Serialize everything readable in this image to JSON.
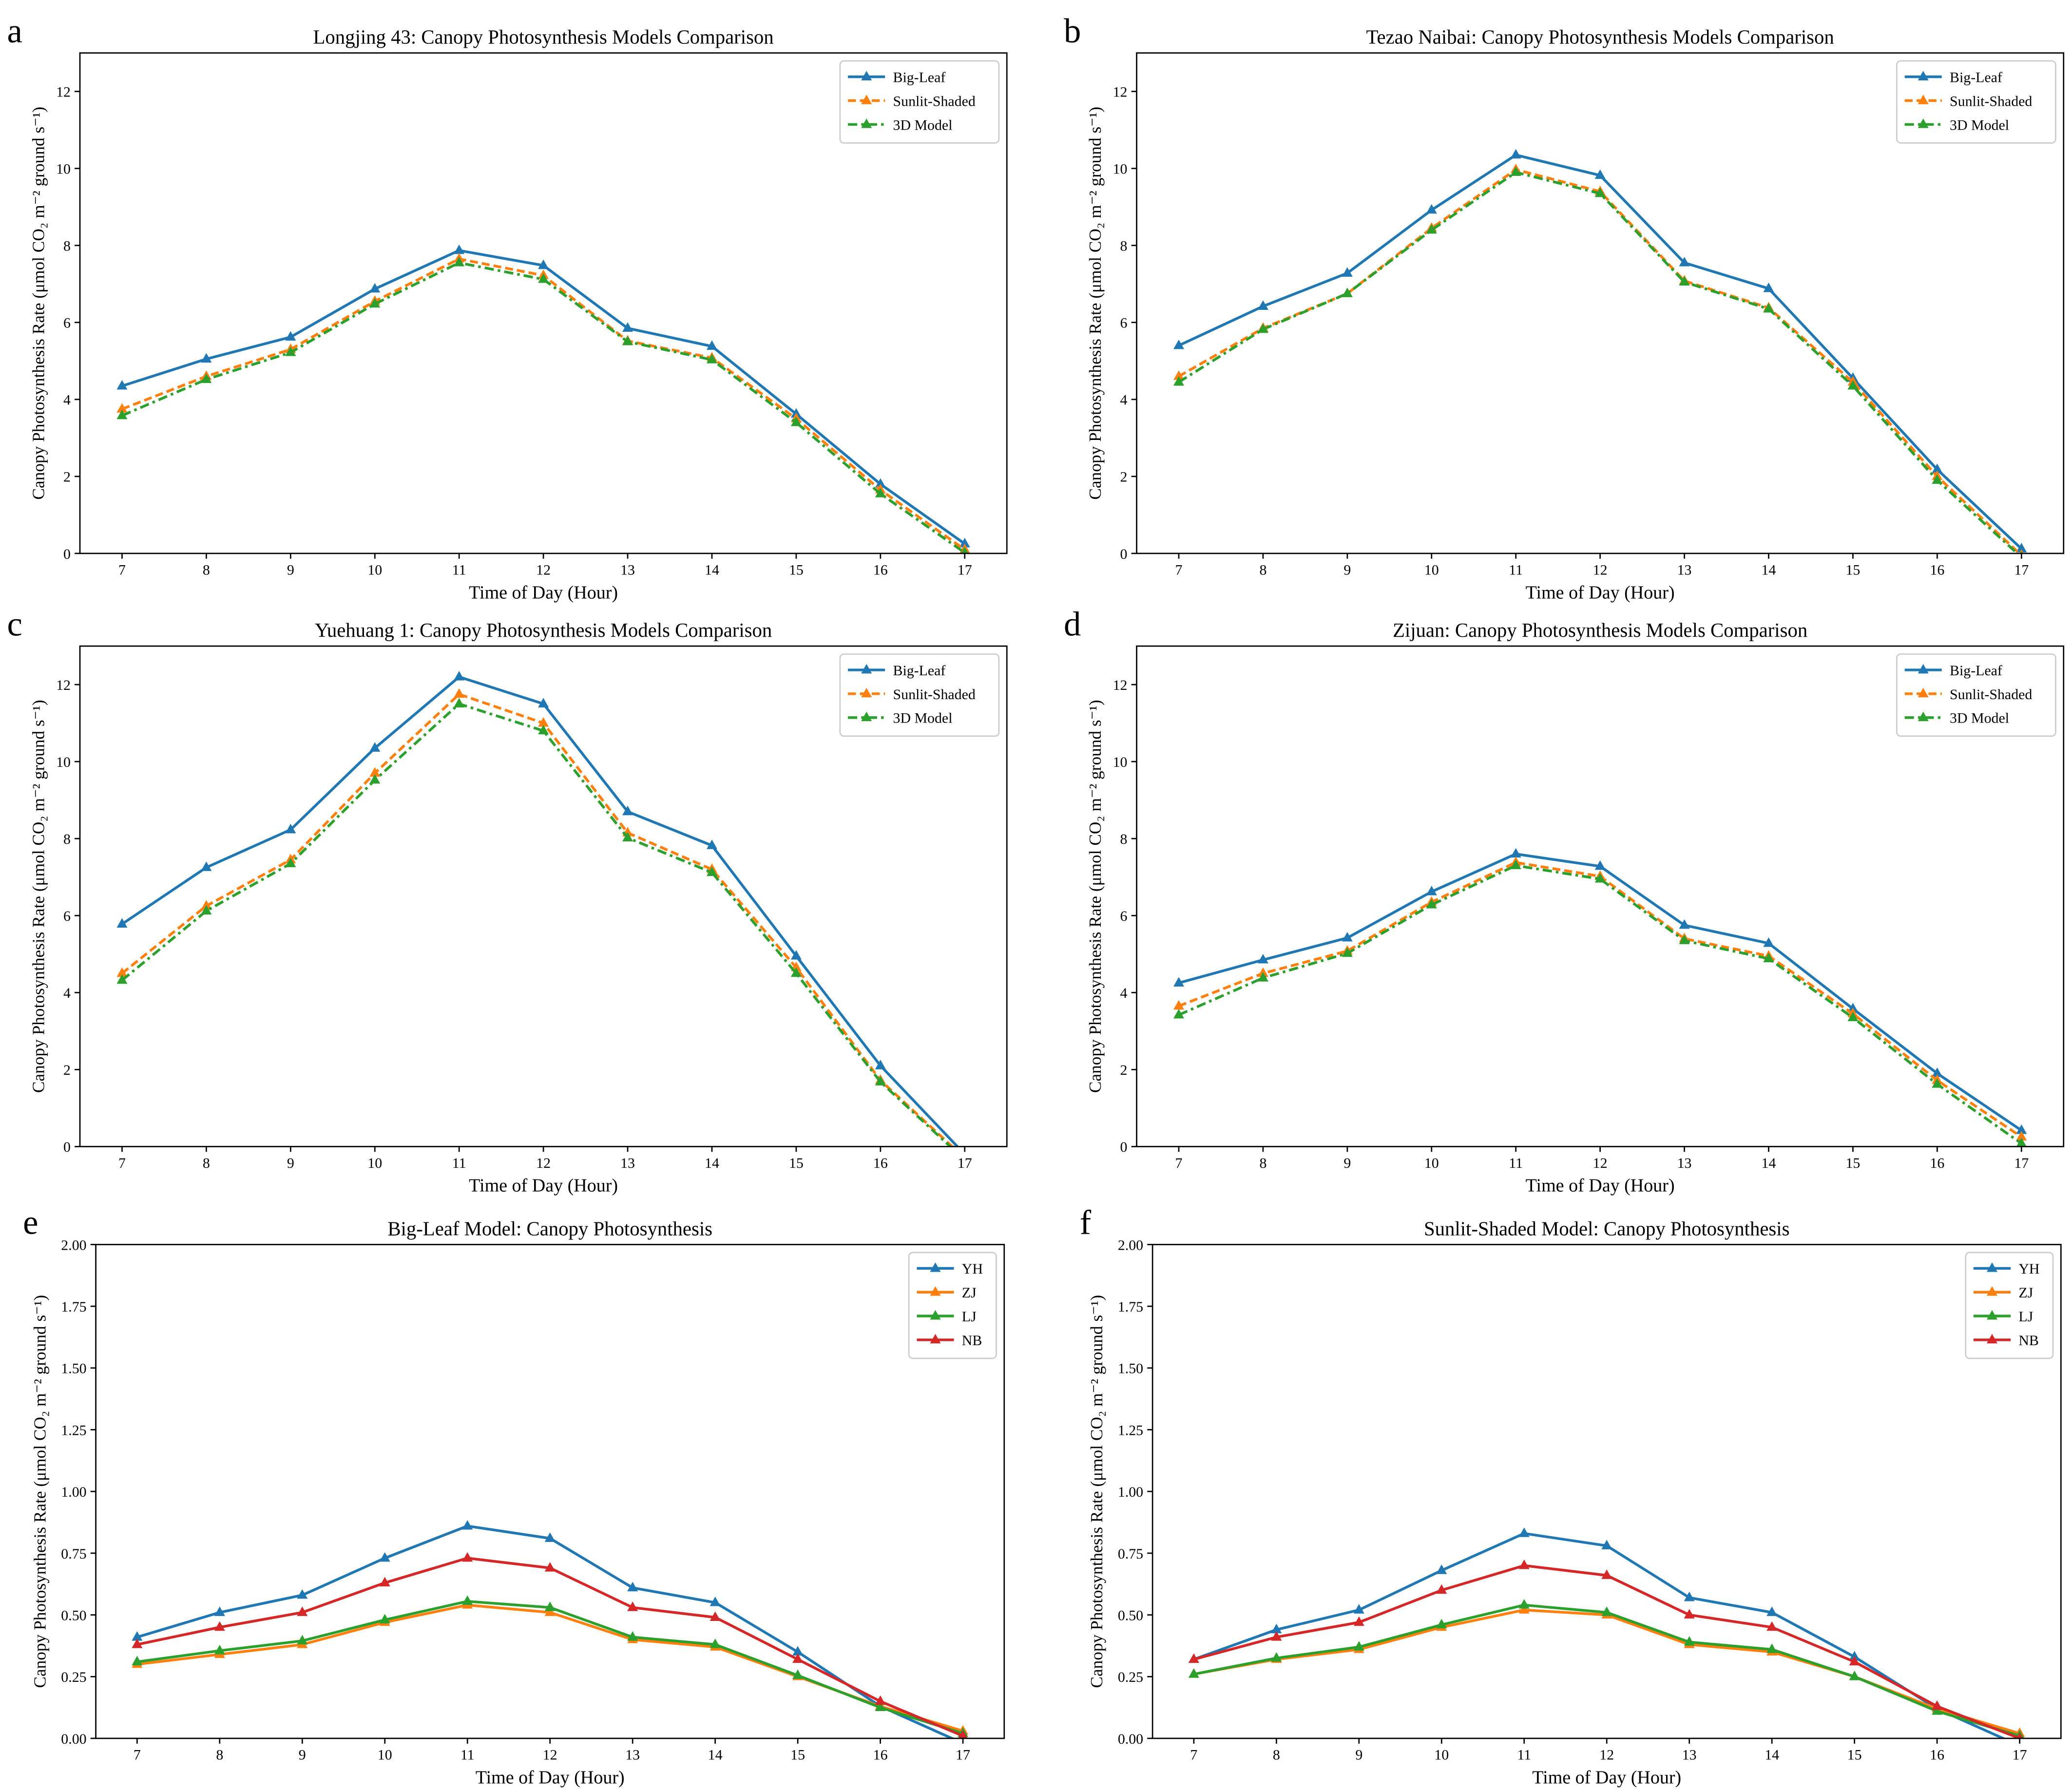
{
  "chart_data": [
    {
      "panel": "a",
      "type": "line",
      "title": "Longjing 43: Canopy Photosynthesis Models Comparison",
      "xlabel": "Time of Day (Hour)",
      "ylabel": "Canopy Photosynthesis Rate (μmol CO₂ m⁻² ground s⁻¹)",
      "x": [
        7,
        8,
        9,
        10,
        11,
        12,
        13,
        14,
        15,
        16,
        17
      ],
      "xlim": [
        6.5,
        17.5
      ],
      "ylim": [
        0,
        13
      ],
      "yticks": [
        0,
        2,
        4,
        6,
        8,
        10,
        12
      ],
      "ytick_labels": [
        "0",
        "2",
        "4",
        "6",
        "8",
        "10",
        "12"
      ],
      "legend": "top-right",
      "grid": false,
      "series": [
        {
          "name": "Big-Leaf",
          "color": "#1f77b4",
          "style": "solid",
          "values": [
            4.35,
            5.05,
            5.62,
            6.87,
            7.87,
            7.48,
            5.85,
            5.38,
            3.62,
            1.8,
            0.25
          ]
        },
        {
          "name": "Sunlit-Shaded",
          "color": "#ff7f0e",
          "style": "dashed",
          "values": [
            3.75,
            4.6,
            5.3,
            6.55,
            7.65,
            7.22,
            5.52,
            5.08,
            3.5,
            1.65,
            0.1
          ]
        },
        {
          "name": "3D Model",
          "color": "#2ca02c",
          "style": "dashdot",
          "values": [
            3.58,
            4.52,
            5.22,
            6.48,
            7.55,
            7.12,
            5.5,
            5.03,
            3.4,
            1.55,
            0.02
          ]
        }
      ]
    },
    {
      "panel": "b",
      "type": "line",
      "title": "Tezao Naibai: Canopy Photosynthesis Models Comparison",
      "xlabel": "Time of Day (Hour)",
      "ylabel": "Canopy Photosynthesis Rate (μmol CO₂ m⁻² ground s⁻¹)",
      "x": [
        7,
        8,
        9,
        10,
        11,
        12,
        13,
        14,
        15,
        16,
        17
      ],
      "xlim": [
        6.5,
        17.5
      ],
      "ylim": [
        0,
        13
      ],
      "yticks": [
        0,
        2,
        4,
        6,
        8,
        10,
        12
      ],
      "ytick_labels": [
        "0",
        "2",
        "4",
        "6",
        "8",
        "10",
        "12"
      ],
      "legend": "top-right",
      "grid": false,
      "series": [
        {
          "name": "Big-Leaf",
          "color": "#1f77b4",
          "style": "solid",
          "values": [
            5.4,
            6.42,
            7.28,
            8.92,
            10.35,
            9.82,
            7.55,
            6.88,
            4.55,
            2.18,
            0.12
          ]
        },
        {
          "name": "Sunlit-Shaded",
          "color": "#ff7f0e",
          "style": "dashed",
          "values": [
            4.6,
            5.85,
            6.75,
            8.45,
            9.97,
            9.4,
            7.08,
            6.38,
            4.45,
            2.0,
            -0.05
          ]
        },
        {
          "name": "3D Model",
          "color": "#2ca02c",
          "style": "dashdot",
          "values": [
            4.45,
            5.82,
            6.75,
            8.4,
            9.9,
            9.35,
            7.05,
            6.35,
            4.35,
            1.9,
            -0.1
          ]
        }
      ]
    },
    {
      "panel": "c",
      "type": "line",
      "title": "Yuehuang 1: Canopy Photosynthesis Models Comparison",
      "xlabel": "Time of Day (Hour)",
      "ylabel": "Canopy Photosynthesis Rate (μmol CO₂ m⁻² ground s⁻¹)",
      "x": [
        7,
        8,
        9,
        10,
        11,
        12,
        13,
        14,
        15,
        16,
        17
      ],
      "xlim": [
        6.5,
        17.5
      ],
      "ylim": [
        0,
        13
      ],
      "yticks": [
        0,
        2,
        4,
        6,
        8,
        10,
        12
      ],
      "ytick_labels": [
        "0",
        "2",
        "4",
        "6",
        "8",
        "10",
        "12"
      ],
      "legend": "top-right",
      "grid": false,
      "series": [
        {
          "name": "Big-Leaf",
          "color": "#1f77b4",
          "style": "solid",
          "values": [
            5.78,
            7.25,
            8.23,
            10.35,
            12.2,
            11.5,
            8.7,
            7.82,
            4.95,
            2.1,
            -0.2
          ]
        },
        {
          "name": "Sunlit-Shaded",
          "color": "#ff7f0e",
          "style": "dashed",
          "values": [
            4.5,
            6.25,
            7.45,
            9.7,
            11.75,
            11.0,
            8.15,
            7.2,
            4.65,
            1.72,
            -0.3
          ]
        },
        {
          "name": "3D Model",
          "color": "#2ca02c",
          "style": "dashdot",
          "values": [
            4.32,
            6.12,
            7.35,
            9.52,
            11.5,
            10.8,
            8.02,
            7.12,
            4.5,
            1.68,
            -0.35
          ]
        }
      ]
    },
    {
      "panel": "d",
      "type": "line",
      "title": "Zijuan: Canopy Photosynthesis Models Comparison",
      "xlabel": "Time of Day (Hour)",
      "ylabel": "Canopy Photosynthesis Rate (μmol CO₂ m⁻² ground s⁻¹)",
      "x": [
        7,
        8,
        9,
        10,
        11,
        12,
        13,
        14,
        15,
        16,
        17
      ],
      "xlim": [
        6.5,
        17.5
      ],
      "ylim": [
        0,
        13
      ],
      "yticks": [
        0,
        2,
        4,
        6,
        8,
        10,
        12
      ],
      "ytick_labels": [
        "0",
        "2",
        "4",
        "6",
        "8",
        "10",
        "12"
      ],
      "legend": "top-right",
      "grid": false,
      "series": [
        {
          "name": "Big-Leaf",
          "color": "#1f77b4",
          "style": "solid",
          "values": [
            4.25,
            4.85,
            5.42,
            6.62,
            7.6,
            7.28,
            5.75,
            5.28,
            3.58,
            1.9,
            0.42
          ]
        },
        {
          "name": "Sunlit-Shaded",
          "color": "#ff7f0e",
          "style": "dashed",
          "values": [
            3.65,
            4.5,
            5.08,
            6.35,
            7.38,
            7.02,
            5.4,
            4.95,
            3.45,
            1.72,
            0.25
          ]
        },
        {
          "name": "3D Model",
          "color": "#2ca02c",
          "style": "dashdot",
          "values": [
            3.42,
            4.38,
            5.02,
            6.28,
            7.3,
            6.95,
            5.35,
            4.88,
            3.35,
            1.62,
            0.08
          ]
        }
      ]
    },
    {
      "panel": "e",
      "type": "line",
      "title": "Big-Leaf Model: Canopy Photosynthesis",
      "xlabel": "Time of Day (Hour)",
      "ylabel": "Canopy Photosynthesis Rate (μmol CO₂ m⁻² ground s⁻¹)",
      "x": [
        7,
        8,
        9,
        10,
        11,
        12,
        13,
        14,
        15,
        16,
        17
      ],
      "xlim": [
        6.5,
        17.5
      ],
      "ylim": [
        0,
        2
      ],
      "yticks": [
        0,
        0.25,
        0.5,
        0.75,
        1,
        1.25,
        1.5,
        1.75,
        2
      ],
      "ytick_labels": [
        "0.00",
        "0.25",
        "0.50",
        "0.75",
        "1.00",
        "1.25",
        "1.50",
        "1.75",
        "2.00"
      ],
      "legend": "top-right",
      "grid": false,
      "series": [
        {
          "name": "YH",
          "color": "#1f77b4",
          "style": "solid",
          "values": [
            0.41,
            0.51,
            0.58,
            0.73,
            0.86,
            0.81,
            0.61,
            0.55,
            0.35,
            0.13,
            -0.02
          ]
        },
        {
          "name": "ZJ",
          "color": "#ff7f0e",
          "style": "solid",
          "values": [
            0.3,
            0.34,
            0.38,
            0.47,
            0.54,
            0.51,
            0.4,
            0.37,
            0.25,
            0.13,
            0.03
          ]
        },
        {
          "name": "LJ",
          "color": "#2ca02c",
          "style": "solid",
          "values": [
            0.31,
            0.355,
            0.395,
            0.48,
            0.555,
            0.53,
            0.41,
            0.38,
            0.255,
            0.125,
            0.02
          ]
        },
        {
          "name": "NB",
          "color": "#d62728",
          "style": "solid",
          "values": [
            0.38,
            0.45,
            0.51,
            0.63,
            0.73,
            0.69,
            0.53,
            0.49,
            0.32,
            0.15,
            0.01
          ]
        }
      ]
    },
    {
      "panel": "f",
      "type": "line",
      "title": "Sunlit-Shaded Model: Canopy Photosynthesis",
      "xlabel": "Time of Day (Hour)",
      "ylabel": "Canopy Photosynthesis Rate (μmol CO₂ m⁻² ground s⁻¹)",
      "x": [
        7,
        8,
        9,
        10,
        11,
        12,
        13,
        14,
        15,
        16,
        17
      ],
      "xlim": [
        6.5,
        17.5
      ],
      "ylim": [
        0,
        2
      ],
      "yticks": [
        0,
        0.25,
        0.5,
        0.75,
        1,
        1.25,
        1.5,
        1.75,
        2
      ],
      "ytick_labels": [
        "0.00",
        "0.25",
        "0.50",
        "0.75",
        "1.00",
        "1.25",
        "1.50",
        "1.75",
        "2.00"
      ],
      "legend": "top-right",
      "grid": false,
      "series": [
        {
          "name": "YH",
          "color": "#1f77b4",
          "style": "solid",
          "values": [
            0.32,
            0.44,
            0.52,
            0.68,
            0.83,
            0.78,
            0.57,
            0.51,
            0.33,
            0.12,
            -0.03
          ]
        },
        {
          "name": "ZJ",
          "color": "#ff7f0e",
          "style": "solid",
          "values": [
            0.26,
            0.32,
            0.36,
            0.45,
            0.52,
            0.5,
            0.38,
            0.35,
            0.25,
            0.12,
            0.02
          ]
        },
        {
          "name": "LJ",
          "color": "#2ca02c",
          "style": "solid",
          "values": [
            0.26,
            0.325,
            0.37,
            0.46,
            0.54,
            0.51,
            0.39,
            0.36,
            0.25,
            0.11,
            0.01
          ]
        },
        {
          "name": "NB",
          "color": "#d62728",
          "style": "solid",
          "values": [
            0.32,
            0.41,
            0.47,
            0.6,
            0.7,
            0.66,
            0.5,
            0.45,
            0.31,
            0.13,
            0.0
          ]
        }
      ]
    }
  ]
}
